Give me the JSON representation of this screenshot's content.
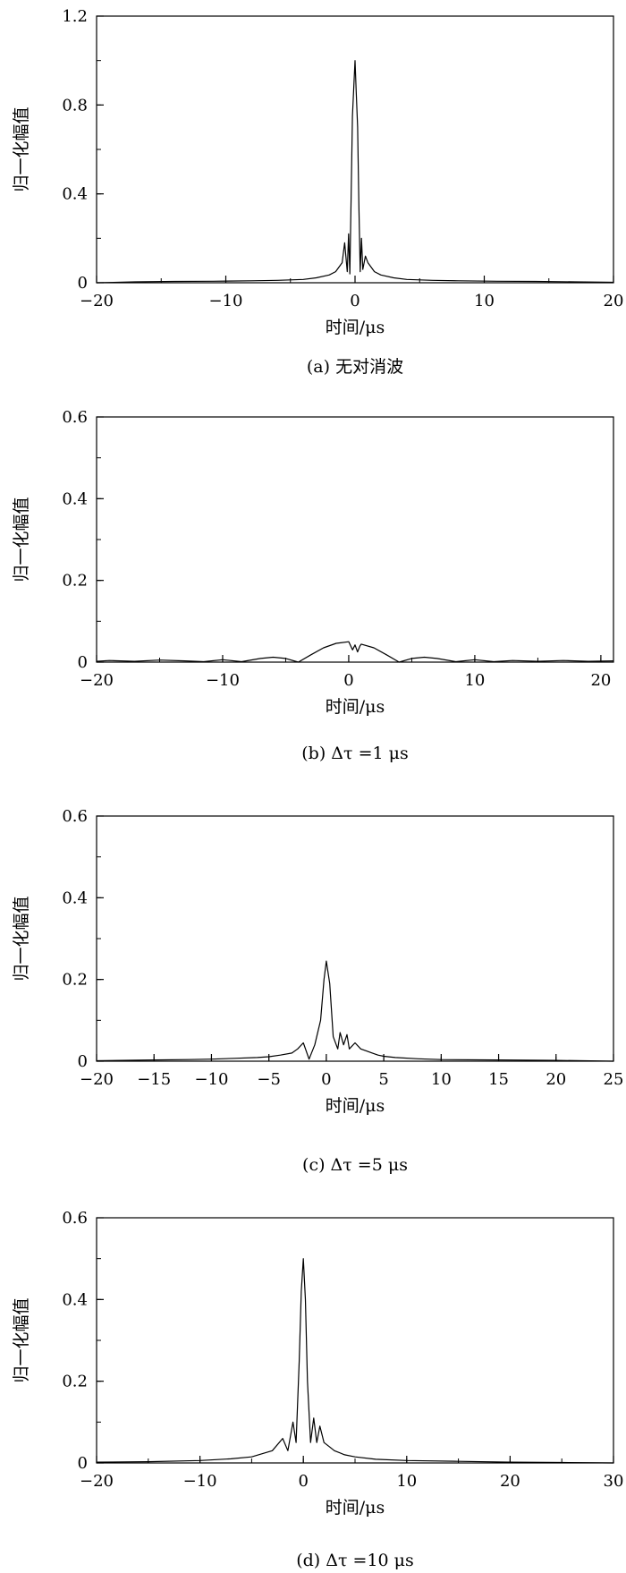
{
  "chart_data": [
    {
      "type": "line",
      "caption": "(a) 无对消波",
      "xlabel": "时间/μs",
      "ylabel": "归一化幅值",
      "xlim": [
        -20,
        20
      ],
      "ylim": [
        0,
        1.2
      ],
      "xticks": [
        -20,
        -10,
        0,
        10,
        20
      ],
      "xtick_labels": [
        "−20",
        "−10",
        "0",
        "10",
        "20"
      ],
      "yticks": [
        0,
        0.4,
        0.8,
        1.2
      ],
      "ytick_labels": [
        "0",
        "0.4",
        "0.8",
        "1.2"
      ],
      "minor_x_step": 5,
      "minor_y_step": 0.2,
      "grid": false,
      "series": [
        {
          "x": [
            -20,
            -17,
            -14,
            -11,
            -8,
            -6,
            -4,
            -3,
            -2,
            -1.5,
            -1,
            -0.8,
            -0.6,
            -0.5,
            -0.4,
            -0.3,
            -0.2,
            -0.1,
            0,
            0.1,
            0.2,
            0.3,
            0.4,
            0.5,
            0.6,
            0.8,
            1,
            1.5,
            2,
            3,
            4,
            6,
            8,
            11,
            14,
            17,
            20
          ],
          "y": [
            0,
            0.004,
            0.006,
            0.007,
            0.009,
            0.011,
            0.015,
            0.022,
            0.035,
            0.05,
            0.09,
            0.18,
            0.05,
            0.22,
            0.04,
            0.4,
            0.75,
            0.88,
            1.0,
            0.85,
            0.7,
            0.35,
            0.05,
            0.2,
            0.06,
            0.12,
            0.09,
            0.05,
            0.035,
            0.022,
            0.015,
            0.011,
            0.009,
            0.007,
            0.006,
            0.004,
            0.002
          ]
        }
      ]
    },
    {
      "type": "line",
      "caption": "(b) Δτ =1 μs",
      "xlabel": "时间/μs",
      "ylabel": "归一化幅值",
      "xlim": [
        -20,
        21
      ],
      "ylim": [
        0,
        0.6
      ],
      "xticks": [
        -20,
        -10,
        0,
        10,
        20
      ],
      "xtick_labels": [
        "−20",
        "−10",
        "0",
        "10",
        "20"
      ],
      "yticks": [
        0,
        0.2,
        0.4,
        0.6
      ],
      "ytick_labels": [
        "0",
        "0.2",
        "0.4",
        "0.6"
      ],
      "minor_x_step": 5,
      "minor_y_step": 0.1,
      "grid": false,
      "series": [
        {
          "x": [
            -20,
            -19,
            -17,
            -15,
            -13,
            -11.5,
            -10,
            -8.5,
            -7,
            -6,
            -5,
            -4,
            -3,
            -2,
            -1,
            0,
            0.3,
            0.5,
            0.7,
            0.9,
            1,
            2,
            3,
            4,
            5,
            6,
            7,
            8.5,
            10,
            11.5,
            13,
            15,
            17,
            19,
            21
          ],
          "y": [
            0.002,
            0.004,
            0.002,
            0.005,
            0.003,
            0.001,
            0.006,
            0.001,
            0.009,
            0.012,
            0.009,
            0.0,
            0.018,
            0.035,
            0.046,
            0.05,
            0.03,
            0.042,
            0.025,
            0.04,
            0.044,
            0.035,
            0.018,
            0.0,
            0.009,
            0.012,
            0.009,
            0.001,
            0.006,
            0.001,
            0.004,
            0.002,
            0.004,
            0.002,
            0.003
          ]
        }
      ]
    },
    {
      "type": "line",
      "caption": "(c) Δτ =5 μs",
      "xlabel": "时间/μs",
      "ylabel": "归一化幅值",
      "xlim": [
        -20,
        25
      ],
      "ylim": [
        0,
        0.6
      ],
      "xticks": [
        -20,
        -15,
        -10,
        -5,
        0,
        5,
        10,
        15,
        20,
        25
      ],
      "xtick_labels": [
        "−20",
        "−15",
        "−10",
        "−5",
        "0",
        "5",
        "10",
        "15",
        "20",
        "25"
      ],
      "yticks": [
        0,
        0.2,
        0.4,
        0.6
      ],
      "ytick_labels": [
        "0",
        "0.2",
        "0.4",
        "0.6"
      ],
      "minor_x_step": 5,
      "minor_y_step": 0.1,
      "grid": false,
      "series": [
        {
          "x": [
            -20,
            -15,
            -12,
            -10,
            -8,
            -6,
            -5,
            -4,
            -3,
            -2.5,
            -2,
            -1.5,
            -1,
            -0.5,
            -0.2,
            0,
            0.3,
            0.6,
            1,
            1.2,
            1.5,
            1.8,
            2,
            2.5,
            3,
            3.5,
            4,
            4.5,
            5,
            6,
            8,
            10,
            15,
            20,
            25
          ],
          "y": [
            0.001,
            0.003,
            0.004,
            0.005,
            0.007,
            0.009,
            0.011,
            0.015,
            0.02,
            0.03,
            0.045,
            0.005,
            0.04,
            0.1,
            0.2,
            0.245,
            0.19,
            0.06,
            0.03,
            0.07,
            0.04,
            0.065,
            0.03,
            0.045,
            0.03,
            0.025,
            0.02,
            0.015,
            0.012,
            0.009,
            0.006,
            0.004,
            0.003,
            0.002,
            0.0
          ]
        }
      ]
    },
    {
      "type": "line",
      "caption": "(d) Δτ =10 μs",
      "xlabel": "时间/μs",
      "ylabel": "归一化幅值",
      "xlim": [
        -20,
        30
      ],
      "ylim": [
        0,
        0.6
      ],
      "xticks": [
        -20,
        -10,
        0,
        10,
        20,
        30
      ],
      "xtick_labels": [
        "−20",
        "−10",
        "0",
        "10",
        "20",
        "30"
      ],
      "yticks": [
        0,
        0.2,
        0.4,
        0.6
      ],
      "ytick_labels": [
        "0",
        "0.2",
        "0.4",
        "0.6"
      ],
      "minor_x_step": 5,
      "minor_y_step": 0.1,
      "grid": false,
      "series": [
        {
          "x": [
            -20,
            -15,
            -10,
            -7,
            -5,
            -3,
            -2,
            -1.5,
            -1,
            -0.7,
            -0.4,
            -0.2,
            0,
            0.2,
            0.4,
            0.7,
            1,
            1.3,
            1.6,
            2,
            2.5,
            3,
            4,
            5,
            7,
            10,
            15,
            20,
            25,
            30
          ],
          "y": [
            0.002,
            0.003,
            0.006,
            0.01,
            0.015,
            0.03,
            0.06,
            0.03,
            0.1,
            0.05,
            0.25,
            0.42,
            0.5,
            0.4,
            0.2,
            0.05,
            0.11,
            0.05,
            0.09,
            0.05,
            0.04,
            0.03,
            0.02,
            0.015,
            0.009,
            0.006,
            0.004,
            0.002,
            0.001,
            0.0
          ]
        }
      ]
    }
  ]
}
